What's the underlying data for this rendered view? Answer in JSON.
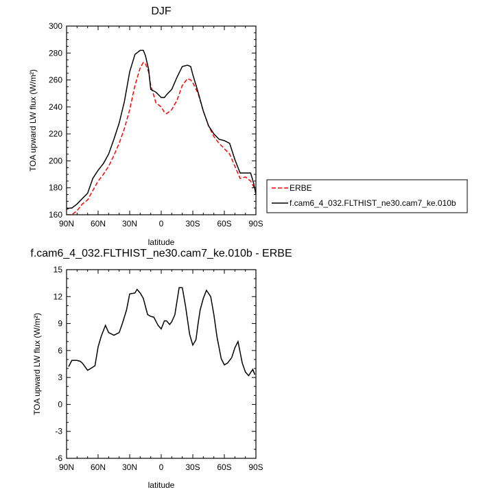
{
  "chart_data": [
    {
      "type": "line",
      "title": "DJF",
      "xlabel": "latitude",
      "ylabel": "TOA upward LW flux (W/m²)",
      "xlim": [
        90,
        -90
      ],
      "ylim": [
        160,
        300
      ],
      "xticks": [
        90,
        60,
        30,
        0,
        -30,
        -60,
        -90
      ],
      "xtick_labels": [
        "90N",
        "60N",
        "30N",
        "0",
        "30S",
        "60S",
        "90S"
      ],
      "yticks": [
        160,
        180,
        200,
        220,
        240,
        260,
        280,
        300
      ],
      "ytick_labels": [
        "160",
        "180",
        "200",
        "220",
        "240",
        "260",
        "280",
        "300"
      ],
      "legend_position": "right",
      "series": [
        {
          "name": "ERBE",
          "color": "#ff0000",
          "dash": true,
          "x": [
            90,
            85,
            80,
            75,
            70,
            65,
            60,
            55,
            50,
            45,
            40,
            35,
            30,
            25,
            20,
            17,
            15,
            12,
            10,
            5,
            0,
            -3,
            -5,
            -10,
            -15,
            -20,
            -25,
            -28,
            -30,
            -35,
            -40,
            -45,
            -50,
            -55,
            -60,
            -65,
            -70,
            -75,
            -80,
            -85,
            -87,
            -90
          ],
          "y": [
            160,
            160,
            163,
            168,
            171,
            178,
            185,
            190,
            196,
            204,
            213,
            224,
            238,
            256,
            269,
            273,
            272,
            266,
            256,
            243,
            240,
            236,
            235,
            238,
            245,
            256,
            261,
            260,
            258,
            250,
            237,
            226,
            218,
            213,
            209,
            205,
            196,
            187,
            188,
            185,
            182,
            178
          ]
        },
        {
          "name": "f.cam6_4_032.FLTHIST_ne30.cam7_ke.010b",
          "color": "#000000",
          "dash": false,
          "x": [
            90,
            87,
            85,
            80,
            75,
            70,
            65,
            60,
            55,
            50,
            45,
            40,
            35,
            30,
            25,
            20,
            17,
            15,
            12,
            10,
            5,
            0,
            -3,
            -5,
            -10,
            -15,
            -20,
            -25,
            -28,
            -30,
            -35,
            -40,
            -45,
            -50,
            -55,
            -60,
            -65,
            -70,
            -75,
            -80,
            -85,
            -88,
            -90
          ],
          "y": [
            164,
            165,
            165,
            168,
            172,
            176,
            187,
            193,
            198,
            205,
            216,
            228,
            244,
            266,
            279,
            282,
            282,
            278,
            268,
            253,
            251,
            247,
            247,
            249,
            253,
            262,
            270,
            271,
            270,
            264,
            251,
            237,
            226,
            220,
            216,
            215,
            213,
            201,
            191,
            191,
            191,
            183,
            175
          ]
        }
      ]
    },
    {
      "type": "line",
      "title": "f.cam6_4_032.FLTHIST_ne30.cam7_ke.010b - ERBE",
      "xlabel": "latitude",
      "ylabel": "TOA upward LW flux (W/m²)",
      "xlim": [
        90,
        -90
      ],
      "ylim": [
        -6,
        15
      ],
      "xticks": [
        90,
        60,
        30,
        0,
        -30,
        -60,
        -90
      ],
      "xtick_labels": [
        "90N",
        "60N",
        "30N",
        "0",
        "30S",
        "60S",
        "90S"
      ],
      "yticks": [
        -6,
        -3,
        0,
        3,
        6,
        9,
        12,
        15
      ],
      "ytick_labels": [
        "-6",
        "-3",
        "0",
        "3",
        "6",
        "9",
        "12",
        "15"
      ],
      "series": [
        {
          "color": "#000000",
          "dash": false,
          "x": [
            88,
            85,
            80,
            77,
            75,
            70,
            67,
            63,
            60,
            57,
            53,
            50,
            45,
            40,
            37,
            33,
            30,
            25,
            23,
            20,
            17,
            13,
            10,
            7,
            3,
            0,
            -3,
            -5,
            -8,
            -10,
            -13,
            -17,
            -20,
            -23,
            -27,
            -30,
            -33,
            -35,
            -37,
            -40,
            -43,
            -47,
            -50,
            -53,
            -57,
            -60,
            -63,
            -67,
            -70,
            -73,
            -75,
            -77,
            -80,
            -83,
            -87,
            -89
          ],
          "y": [
            4.2,
            4.9,
            4.9,
            4.8,
            4.6,
            3.8,
            4.0,
            4.3,
            6.4,
            7.6,
            8.8,
            8.0,
            7.7,
            8.0,
            9.0,
            10.5,
            12.3,
            12.4,
            12.8,
            12.4,
            11.8,
            10.0,
            9.8,
            9.7,
            8.8,
            8.4,
            9.3,
            9.3,
            8.9,
            9.2,
            10.0,
            13.0,
            13.0,
            11.0,
            7.8,
            6.6,
            7.2,
            9.0,
            10.5,
            11.8,
            12.7,
            12.0,
            10.0,
            7.5,
            5.1,
            4.4,
            4.6,
            5.2,
            6.3,
            7.0,
            5.8,
            4.6,
            3.6,
            3.2,
            3.9,
            3.3
          ]
        }
      ]
    }
  ]
}
